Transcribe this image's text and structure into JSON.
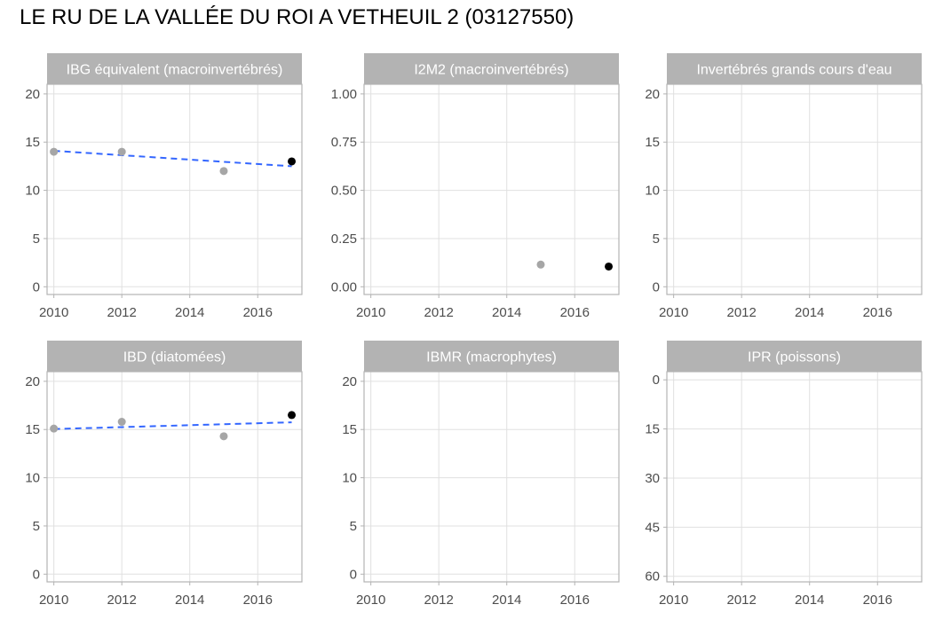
{
  "title": "LE RU DE LA VALLÉE DU ROI A VETHEUIL 2 (03127550)",
  "colors": {
    "strip": "#b3b3b3",
    "border": "#b3b3b3",
    "grid": "#e0e0e0",
    "point_past": "#a6a6a6",
    "point_latest": "#000000",
    "trend": "#3366ff"
  },
  "chart_data": [
    {
      "type": "scatter",
      "panel": "IBG équivalent (macroinvertébrés)",
      "xlim": [
        2009.8,
        2017.3
      ],
      "ylim": [
        -0.8,
        21
      ],
      "xticks": [
        2010,
        2012,
        2014,
        2016
      ],
      "yticks": [
        0,
        5,
        10,
        15,
        20
      ],
      "yticklabels": [
        "0",
        "5",
        "10",
        "15",
        "20"
      ],
      "points": [
        {
          "x": 2010,
          "y": 14.0,
          "latest": false
        },
        {
          "x": 2012,
          "y": 14.0,
          "latest": false
        },
        {
          "x": 2015,
          "y": 12.0,
          "latest": false
        },
        {
          "x": 2017,
          "y": 13.0,
          "latest": true
        }
      ],
      "trend": [
        [
          2010,
          14.1
        ],
        [
          2017,
          12.5
        ]
      ]
    },
    {
      "type": "scatter",
      "panel": "I2M2 (macroinvertébrés)",
      "xlim": [
        2009.8,
        2017.3
      ],
      "ylim": [
        -0.04,
        1.05
      ],
      "xticks": [
        2010,
        2012,
        2014,
        2016
      ],
      "yticks": [
        0,
        0.25,
        0.5,
        0.75,
        1.0
      ],
      "yticklabels": [
        "0.00",
        "0.25",
        "0.50",
        "0.75",
        "1.00"
      ],
      "points": [
        {
          "x": 2015,
          "y": 0.115,
          "latest": false
        },
        {
          "x": 2017,
          "y": 0.105,
          "latest": true
        }
      ],
      "trend": []
    },
    {
      "type": "scatter",
      "panel": "Invertébrés grands cours d'eau",
      "xlim": [
        2009.8,
        2017.3
      ],
      "ylim": [
        -0.8,
        21
      ],
      "xticks": [
        2010,
        2012,
        2014,
        2016
      ],
      "yticks": [
        0,
        5,
        10,
        15,
        20
      ],
      "yticklabels": [
        "0",
        "5",
        "10",
        "15",
        "20"
      ],
      "points": [],
      "trend": []
    },
    {
      "type": "scatter",
      "panel": "IBD (diatomées)",
      "xlim": [
        2009.8,
        2017.3
      ],
      "ylim": [
        -0.8,
        21
      ],
      "xticks": [
        2010,
        2012,
        2014,
        2016
      ],
      "yticks": [
        0,
        5,
        10,
        15,
        20
      ],
      "yticklabels": [
        "0",
        "5",
        "10",
        "15",
        "20"
      ],
      "points": [
        {
          "x": 2010,
          "y": 15.1,
          "latest": false
        },
        {
          "x": 2012,
          "y": 15.8,
          "latest": false
        },
        {
          "x": 2015,
          "y": 14.3,
          "latest": false
        },
        {
          "x": 2017,
          "y": 16.5,
          "latest": true
        }
      ],
      "trend": [
        [
          2010,
          15.05
        ],
        [
          2017,
          15.75
        ]
      ]
    },
    {
      "type": "scatter",
      "panel": "IBMR (macrophytes)",
      "xlim": [
        2009.8,
        2017.3
      ],
      "ylim": [
        -0.8,
        21
      ],
      "xticks": [
        2010,
        2012,
        2014,
        2016
      ],
      "yticks": [
        0,
        5,
        10,
        15,
        20
      ],
      "yticklabels": [
        "0",
        "5",
        "10",
        "15",
        "20"
      ],
      "points": [],
      "trend": []
    },
    {
      "type": "scatter",
      "panel": "IPR (poissons)",
      "xlim": [
        2009.8,
        2017.3
      ],
      "ylim": [
        61.7,
        -2.5
      ],
      "xticks": [
        2010,
        2012,
        2014,
        2016
      ],
      "yticks": [
        0,
        15,
        30,
        45,
        60
      ],
      "yticklabels": [
        "0",
        "15",
        "30",
        "45",
        "60"
      ],
      "points": [],
      "trend": []
    }
  ]
}
